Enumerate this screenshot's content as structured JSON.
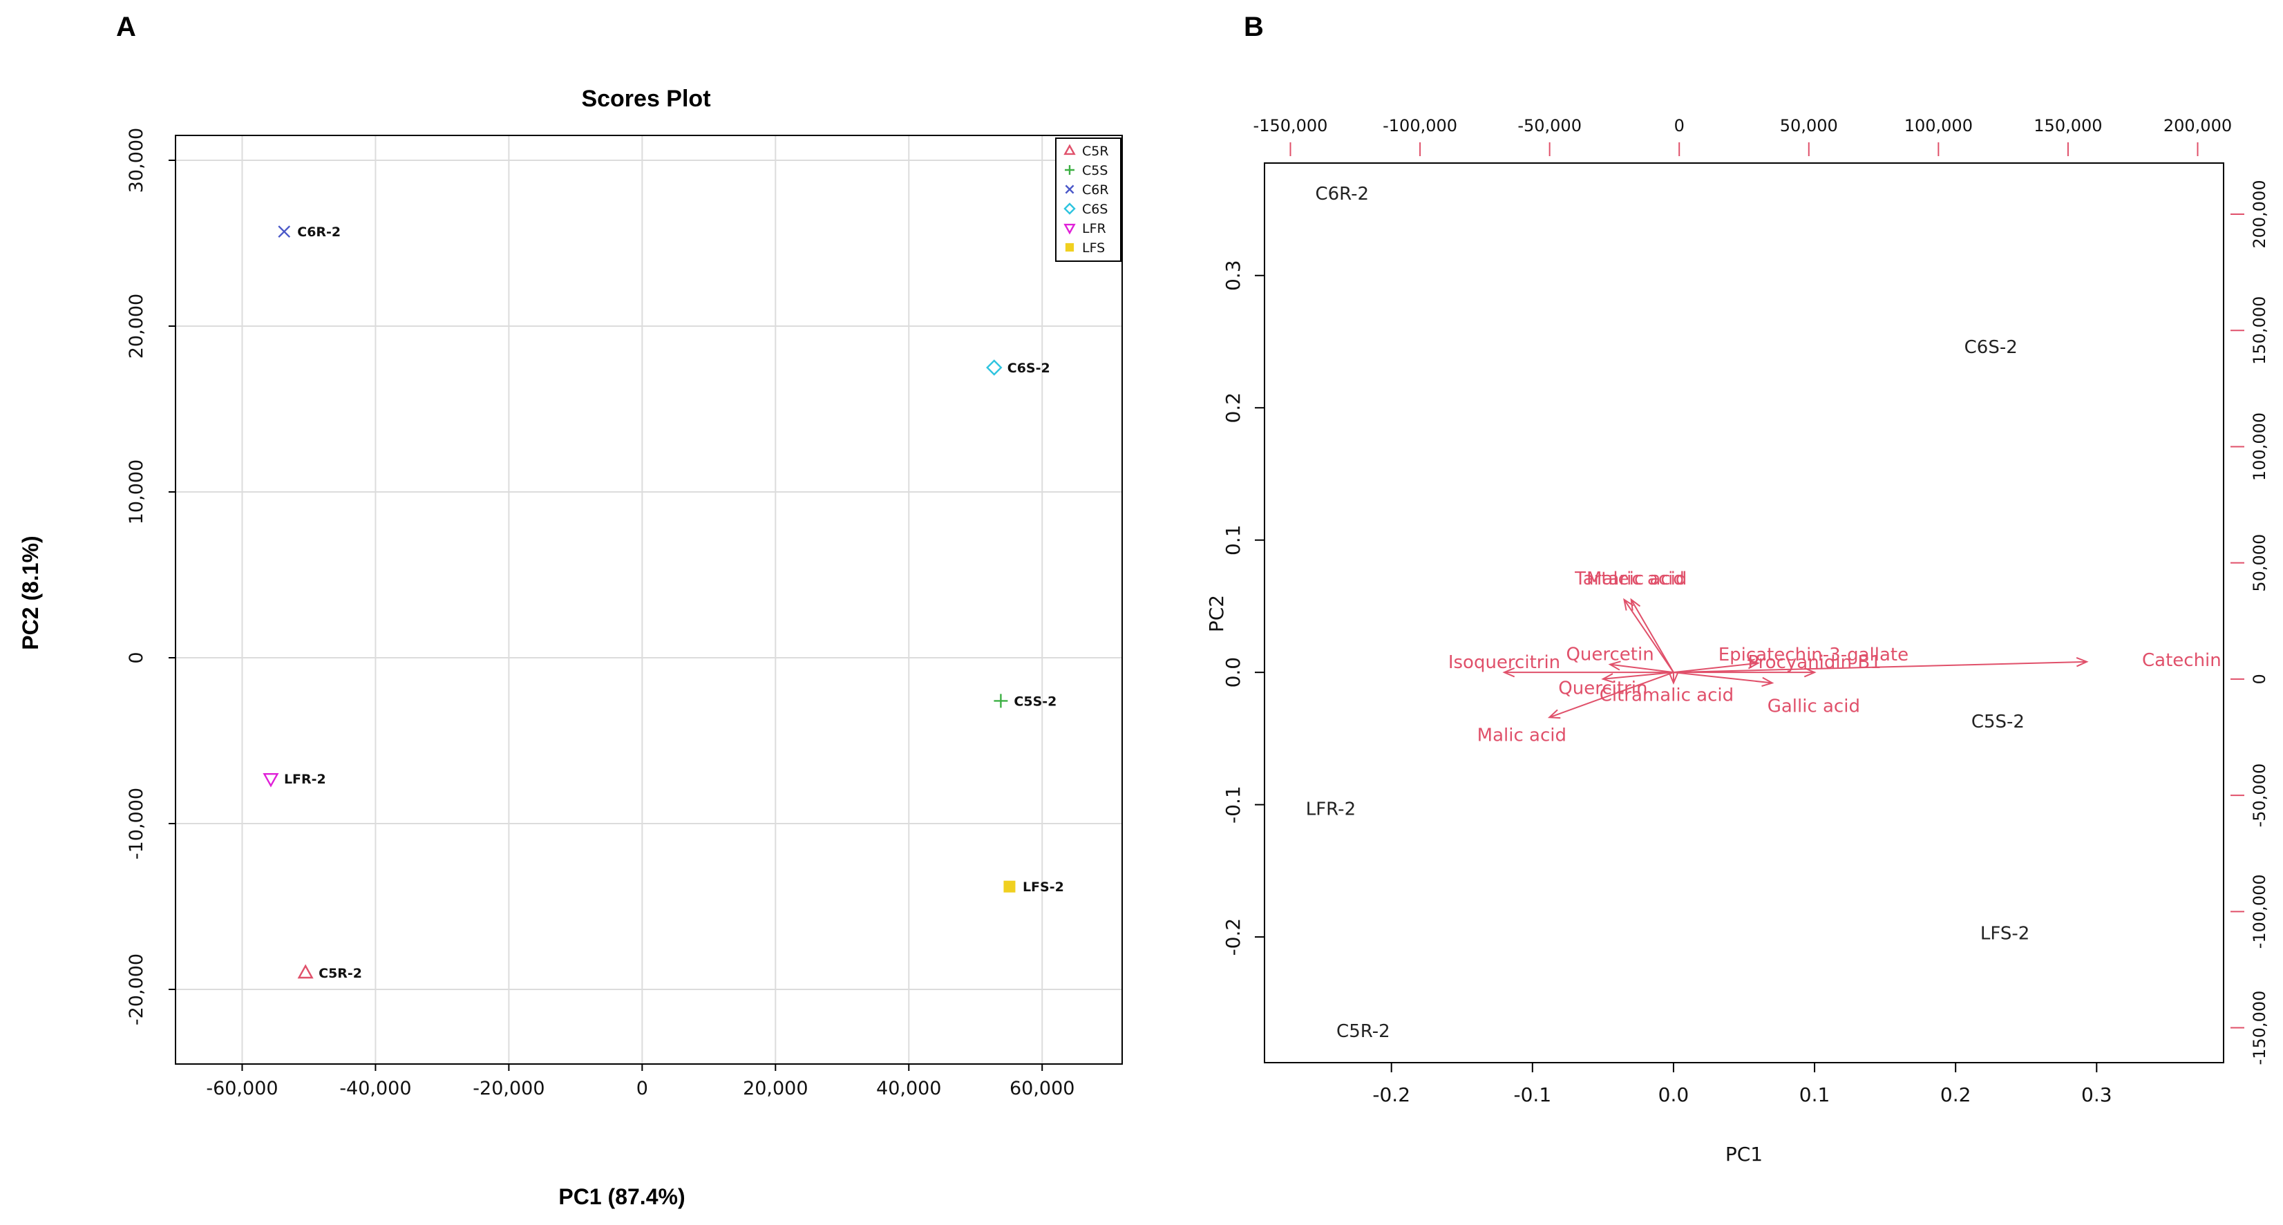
{
  "panels": {
    "a_label": "A",
    "b_label": "B"
  },
  "colors": {
    "C5R": "#e0506a",
    "C5S": "#3cb043",
    "C6R": "#4a58c8",
    "C6S": "#2ec4df",
    "LFR": "#e020d8",
    "LFS": "#f0d020",
    "loading": "#e0506a",
    "grid": "#dcdcdc"
  },
  "chart_data": [
    {
      "type": "scatter",
      "title": "Scores Plot",
      "xlabel": "PC1 (87.4%)",
      "ylabel": "PC2 (8.1%)",
      "xlim": [
        -70000,
        72000
      ],
      "ylim": [
        -24500,
        31500
      ],
      "xticks": [
        -60000,
        -40000,
        -20000,
        0,
        20000,
        40000,
        60000
      ],
      "xtick_labels": [
        "-60,000",
        "-40,000",
        "-20,000",
        "0",
        "20,000",
        "40,000",
        "60,000"
      ],
      "yticks": [
        -20000,
        -10000,
        0,
        10000,
        20000,
        30000
      ],
      "ytick_labels": [
        "-20,000",
        "-10,000",
        "0",
        "10,000",
        "20,000",
        "30,000"
      ],
      "grid": true,
      "legend_position": "top-right",
      "series": [
        {
          "name": "C5R",
          "marker": "triangle-up",
          "points": [
            {
              "x": -50500,
              "y": -19000,
              "label": "C5R-2"
            }
          ]
        },
        {
          "name": "C5S",
          "marker": "plus",
          "points": [
            {
              "x": 53800,
              "y": -2600,
              "label": "C5S-2"
            }
          ]
        },
        {
          "name": "C6R",
          "marker": "cross",
          "points": [
            {
              "x": -53700,
              "y": 25700,
              "label": "C6R-2"
            }
          ]
        },
        {
          "name": "C6S",
          "marker": "diamond",
          "points": [
            {
              "x": 52800,
              "y": 17500,
              "label": "C6S-2"
            }
          ]
        },
        {
          "name": "LFR",
          "marker": "triangle-down",
          "points": [
            {
              "x": -55700,
              "y": -7300,
              "label": "LFR-2"
            }
          ]
        },
        {
          "name": "LFS",
          "marker": "square",
          "points": [
            {
              "x": 55100,
              "y": -13800,
              "label": "LFS-2"
            }
          ]
        }
      ]
    },
    {
      "type": "scatter",
      "title": "",
      "xlabel": "PC1",
      "ylabel": "PC2",
      "xlim": [
        -0.29,
        0.39
      ],
      "ylim": [
        -0.295,
        0.385
      ],
      "xticks": [
        -0.2,
        -0.1,
        0.0,
        0.1,
        0.2,
        0.3
      ],
      "xtick_labels": [
        "-0.2",
        "-0.1",
        "0.0",
        "0.1",
        "0.2",
        "0.3"
      ],
      "yticks": [
        -0.2,
        -0.1,
        0.0,
        0.1,
        0.2,
        0.3
      ],
      "ytick_labels": [
        "-0.2",
        "-0.1",
        "0.0",
        "0.1",
        "0.2",
        "0.3"
      ],
      "top_axis": {
        "lim": [
          -160000,
          210000
        ],
        "ticks": [
          -150000,
          -100000,
          -50000,
          0,
          50000,
          100000,
          150000,
          200000
        ],
        "tick_labels": [
          "-150,000",
          "-100,000",
          "-50,000",
          "0",
          "50,000",
          "100,000",
          "150,000",
          "200,000"
        ]
      },
      "right_axis": {
        "lim": [
          -165000,
          222000
        ],
        "ticks": [
          -150000,
          -100000,
          -50000,
          0,
          50000,
          100000,
          150000,
          200000
        ],
        "tick_labels": [
          "-150,000",
          "-100,000",
          "-50,000",
          "0",
          "50,000",
          "100,000",
          "150,000",
          "200,000"
        ]
      },
      "scores": [
        {
          "x": -0.235,
          "y": 0.362,
          "label": "C6R-2"
        },
        {
          "x": 0.225,
          "y": 0.246,
          "label": "C6S-2"
        },
        {
          "x": 0.23,
          "y": -0.037,
          "label": "C5S-2"
        },
        {
          "x": -0.243,
          "y": -0.103,
          "label": "LFR-2"
        },
        {
          "x": 0.235,
          "y": -0.197,
          "label": "LFS-2"
        },
        {
          "x": -0.22,
          "y": -0.271,
          "label": "C5R-2"
        }
      ],
      "loadings": [
        {
          "x": 0.293,
          "y": 0.008,
          "label": "Catechin"
        },
        {
          "x": -0.088,
          "y": -0.034,
          "label": "Malic acid"
        },
        {
          "x": -0.035,
          "y": 0.055,
          "label": "Tartaric acid"
        },
        {
          "x": -0.03,
          "y": 0.055,
          "label": "Maleic acid"
        },
        {
          "x": 0.07,
          "y": -0.008,
          "label": "Gallic acid"
        },
        {
          "x": 0.06,
          "y": 0.007,
          "label": "Epicatechin-3-gallate"
        },
        {
          "x": -0.045,
          "y": 0.006,
          "label": "Quercetin"
        },
        {
          "x": -0.05,
          "y": -0.005,
          "label": "Quercitrin"
        },
        {
          "x": 0.0,
          "y": -0.008,
          "label": "Citramalic acid"
        },
        {
          "x": -0.12,
          "y": 0.0,
          "label": "Isoquercitrin"
        },
        {
          "x": 0.1,
          "y": 0.0,
          "label": "Procyanidin B1"
        }
      ]
    }
  ]
}
